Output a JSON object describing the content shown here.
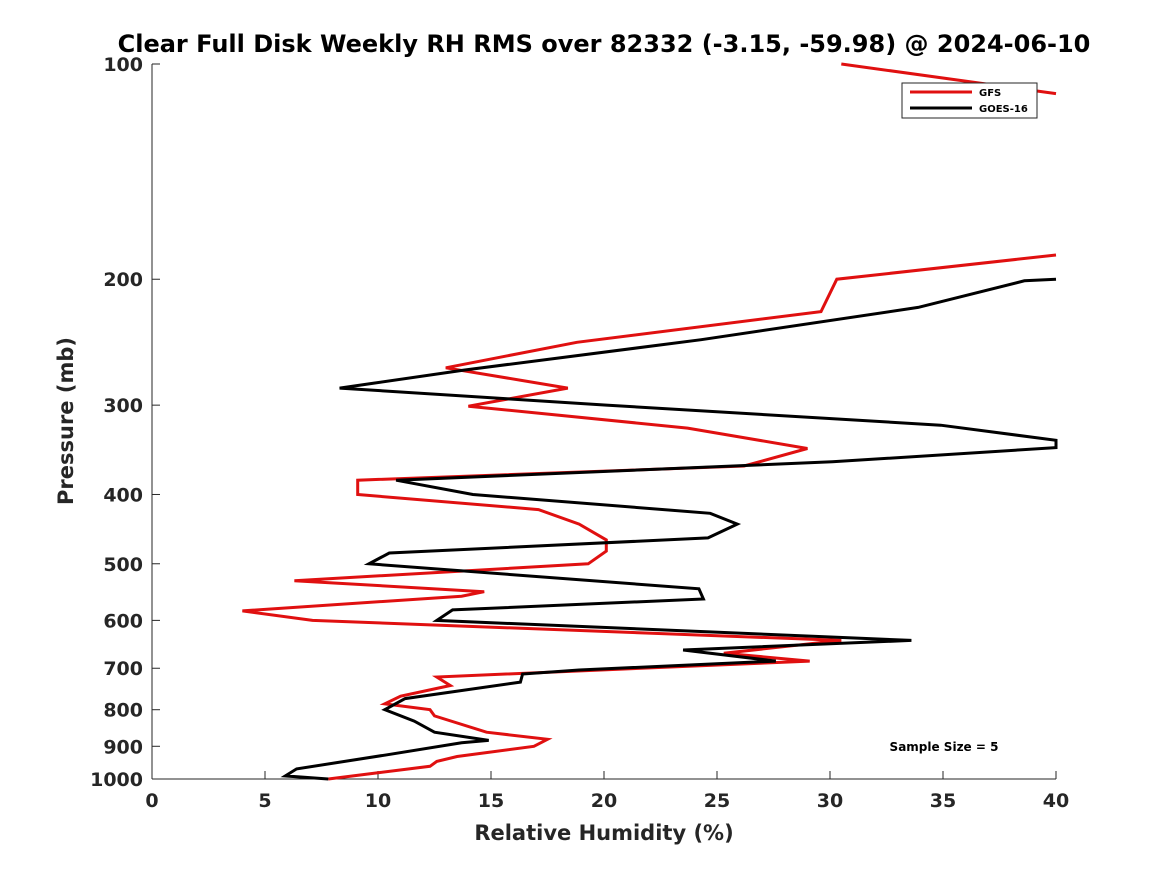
{
  "chart_data": {
    "type": "line",
    "title": "Clear Full Disk Weekly RH RMS over 82332 (-3.15, -59.98) @ 2024-06-10",
    "xlabel": "Relative Humidity (%)",
    "ylabel": "Pressure (mb)",
    "xlim": [
      0,
      40
    ],
    "ylim": [
      1000,
      100
    ],
    "yscale": "log",
    "grid": false,
    "legend_position": "top-right",
    "x_ticks": [
      "0",
      "5",
      "10",
      "15",
      "20",
      "25",
      "30",
      "35",
      "40"
    ],
    "y_ticks": [
      "100",
      "200",
      "300",
      "400",
      "500",
      "600",
      "700",
      "800",
      "900",
      "1000"
    ],
    "annotation": "Sample Size = 5",
    "series": [
      {
        "name": "GFS",
        "color": "#e01010",
        "points": [
          [
            30.5,
            100
          ],
          [
            40,
            110
          ],
          [
            null,
            null
          ],
          [
            40,
            185
          ],
          [
            30.3,
            200
          ],
          [
            29.6,
            222
          ],
          [
            18.8,
            245
          ],
          [
            13,
            266
          ],
          [
            18.4,
            284
          ],
          [
            14,
            301
          ],
          [
            23.7,
            323
          ],
          [
            29,
            345
          ],
          [
            26.2,
            365
          ],
          [
            9.1,
            382
          ],
          [
            9.1,
            400
          ],
          [
            17.1,
            420
          ],
          [
            18.9,
            440
          ],
          [
            20.1,
            463
          ],
          [
            20.1,
            480
          ],
          [
            19.3,
            500
          ],
          [
            6.3,
            528
          ],
          [
            14.7,
            547
          ],
          [
            13.7,
            555
          ],
          [
            4,
            582
          ],
          [
            7.1,
            600
          ],
          [
            30.5,
            640
          ],
          [
            25.3,
            667
          ],
          [
            29.1,
            684
          ],
          [
            12.6,
            720
          ],
          [
            13.2,
            740
          ],
          [
            11,
            766
          ],
          [
            10.3,
            785
          ],
          [
            12.3,
            800
          ],
          [
            12.5,
            816
          ],
          [
            14.8,
            860
          ],
          [
            17.5,
            880
          ],
          [
            16.9,
            900
          ],
          [
            13.5,
            930
          ],
          [
            12.6,
            945
          ],
          [
            12.3,
            960
          ],
          [
            10,
            980
          ],
          [
            7.8,
            1000
          ]
        ]
      },
      {
        "name": "GOES-16",
        "color": "#000000",
        "points": [
          [
            40,
            200
          ],
          [
            38.6,
            201
          ],
          [
            33.9,
            219
          ],
          [
            24.3,
            243
          ],
          [
            13.8,
            268
          ],
          [
            8.3,
            284
          ],
          [
            20.1,
            300
          ],
          [
            34.9,
            320
          ],
          [
            40,
            336
          ],
          [
            40,
            344
          ],
          [
            30.1,
            360
          ],
          [
            10.8,
            382
          ],
          [
            14.2,
            400
          ],
          [
            24.7,
            425
          ],
          [
            25.9,
            440
          ],
          [
            24.6,
            460
          ],
          [
            10.5,
            483
          ],
          [
            9.6,
            500
          ],
          [
            24.2,
            542
          ],
          [
            24.4,
            560
          ],
          [
            13.3,
            580
          ],
          [
            12.6,
            600
          ],
          [
            33.6,
            640
          ],
          [
            23.5,
            660
          ],
          [
            27.6,
            684
          ],
          [
            18.9,
            704
          ],
          [
            16.4,
            713
          ],
          [
            16.3,
            732
          ],
          [
            11.2,
            772
          ],
          [
            10.3,
            800
          ],
          [
            11.6,
            830
          ],
          [
            12.5,
            860
          ],
          [
            14.9,
            883
          ],
          [
            13.7,
            890
          ],
          [
            10.4,
            925
          ],
          [
            6.4,
            968
          ],
          [
            5.9,
            990
          ],
          [
            7.8,
            1000
          ]
        ]
      }
    ]
  }
}
